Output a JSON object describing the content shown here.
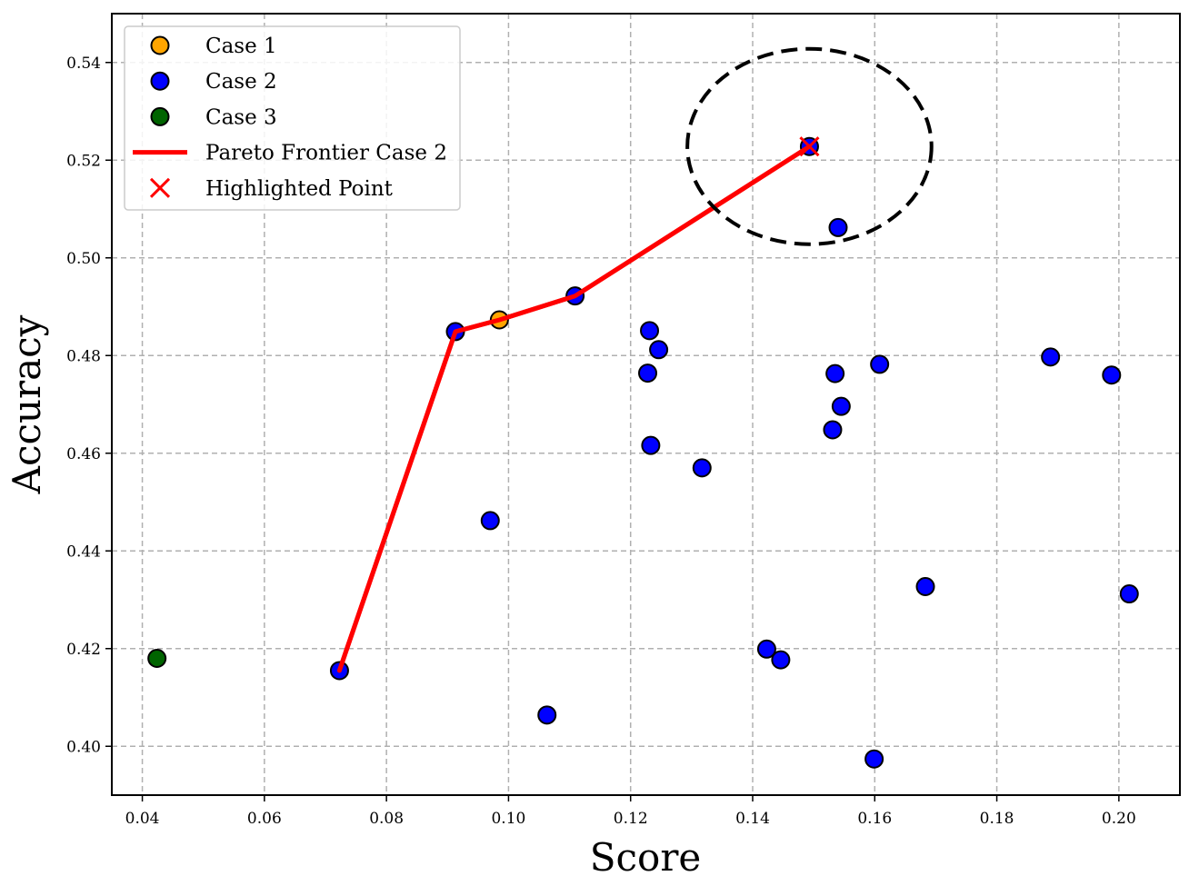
{
  "chart_data": {
    "type": "scatter",
    "xlabel": "Score",
    "ylabel": "Accuracy",
    "xlim": [
      0.035,
      0.21
    ],
    "ylim": [
      0.39,
      0.55
    ],
    "xticks": [
      0.04,
      0.06,
      0.08,
      0.1,
      0.12,
      0.14,
      0.16,
      0.18,
      0.2
    ],
    "xtick_labels": [
      "0.04",
      "0.06",
      "0.08",
      "0.10",
      "0.12",
      "0.14",
      "0.16",
      "0.18",
      "0.20"
    ],
    "yticks": [
      0.4,
      0.42,
      0.44,
      0.46,
      0.48,
      0.5,
      0.52,
      0.54
    ],
    "ytick_labels": [
      "0.40",
      "0.42",
      "0.44",
      "0.46",
      "0.48",
      "0.50",
      "0.52",
      "0.54"
    ],
    "grid": true,
    "legend_position": "top-left",
    "series": [
      {
        "name": "Case 1",
        "kind": "scatter",
        "color": "#FFA500",
        "points": [
          [
            0.0985,
            0.4873
          ]
        ]
      },
      {
        "name": "Case 2",
        "kind": "scatter",
        "color": "#0000FF",
        "points": [
          [
            0.0723,
            0.4155
          ],
          [
            0.0913,
            0.4849
          ],
          [
            0.097,
            0.4462
          ],
          [
            0.1063,
            0.4064
          ],
          [
            0.1109,
            0.4922
          ],
          [
            0.1228,
            0.4764
          ],
          [
            0.1231,
            0.4851
          ],
          [
            0.1233,
            0.4616
          ],
          [
            0.1246,
            0.4812
          ],
          [
            0.1317,
            0.457
          ],
          [
            0.1423,
            0.4199
          ],
          [
            0.1446,
            0.4177
          ],
          [
            0.1493,
            0.5228
          ],
          [
            0.1531,
            0.4648
          ],
          [
            0.1535,
            0.4763
          ],
          [
            0.154,
            0.5062
          ],
          [
            0.1545,
            0.4696
          ],
          [
            0.1599,
            0.3974
          ],
          [
            0.1608,
            0.4782
          ],
          [
            0.1683,
            0.4327
          ],
          [
            0.1888,
            0.4797
          ],
          [
            0.1988,
            0.476
          ],
          [
            0.2017,
            0.4312
          ]
        ]
      },
      {
        "name": "Case 3",
        "kind": "scatter",
        "color": "#006400",
        "points": [
          [
            0.0424,
            0.418
          ]
        ]
      },
      {
        "name": "Pareto Frontier Case 2",
        "kind": "line",
        "color": "#FF0000",
        "points": [
          [
            0.0723,
            0.4155
          ],
          [
            0.0913,
            0.4849
          ],
          [
            0.0985,
            0.4873
          ],
          [
            0.1109,
            0.4922
          ],
          [
            0.1493,
            0.5228
          ]
        ]
      },
      {
        "name": "Highlighted Point",
        "kind": "marker-x",
        "color": "#FF0000",
        "points": [
          [
            0.1493,
            0.5228
          ]
        ]
      }
    ],
    "annotations": [
      {
        "type": "dashed-ellipse",
        "color": "#000000",
        "center": [
          0.1493,
          0.5228
        ],
        "half_width": 0.02,
        "half_height": 0.02
      }
    ]
  }
}
